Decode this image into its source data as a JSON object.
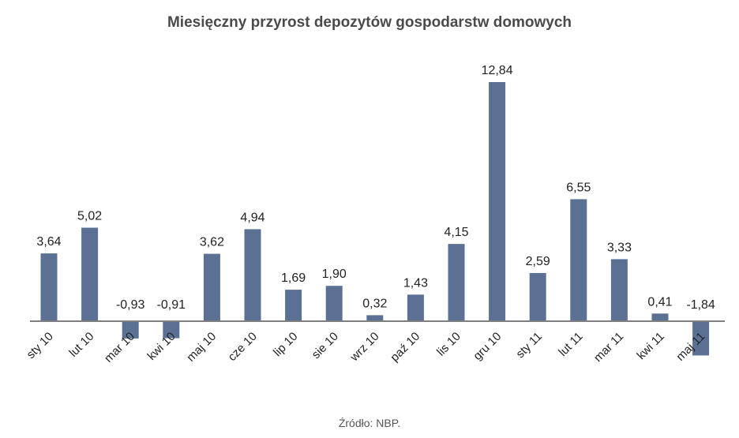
{
  "chart_data": {
    "type": "bar",
    "title": "Miesięczny przyrost depozytów gospodarstw domowych",
    "categories": [
      "sty 10",
      "lut 10",
      "mar 10",
      "kwi 10",
      "maj 10",
      "cze 10",
      "lip 10",
      "sie 10",
      "wrz 10",
      "paź 10",
      "lis 10",
      "gru 10",
      "sty 11",
      "lut 11",
      "mar 11",
      "kwi 11",
      "maj 11"
    ],
    "values": [
      3.64,
      5.02,
      -0.93,
      -0.91,
      3.62,
      4.94,
      1.69,
      1.9,
      0.32,
      1.43,
      4.15,
      12.84,
      2.59,
      6.55,
      3.33,
      0.41,
      -1.84
    ],
    "labels": [
      "3,64",
      "5,02",
      "-0,93",
      "-0,91",
      "3,62",
      "4,94",
      "1,69",
      "1,90",
      "0,32",
      "1,43",
      "4,15",
      "12,84",
      "2,59",
      "6,55",
      "3,33",
      "0,41",
      "-1,84"
    ],
    "xlabel": "",
    "ylabel": "",
    "grid": false,
    "legend": "none",
    "bar_color": "#5b7194",
    "axis_color": "#7f7f7f"
  },
  "source": "Źródło: NBP."
}
